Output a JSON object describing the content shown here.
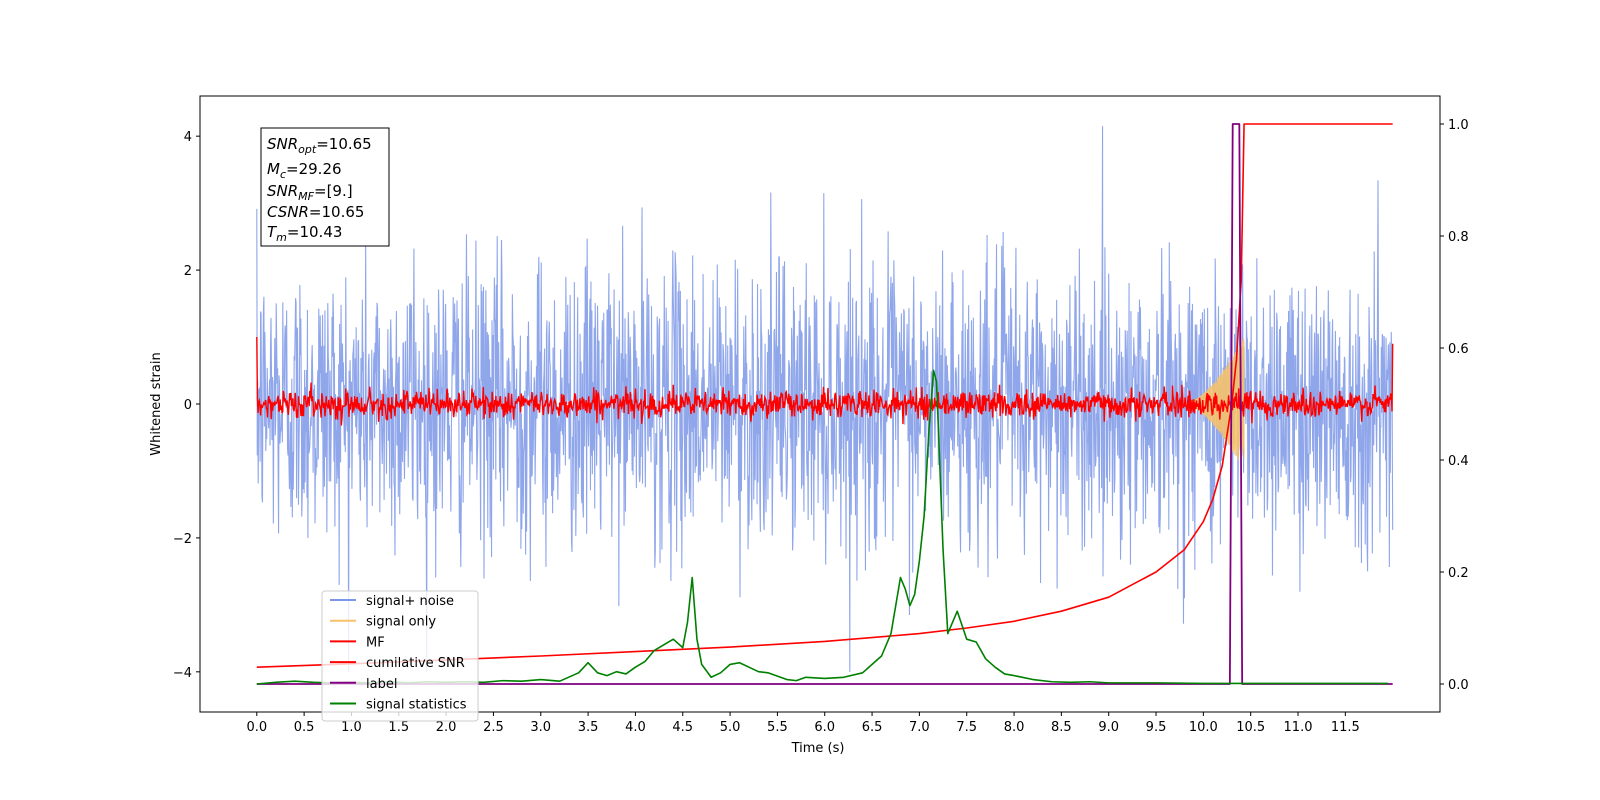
{
  "chart_data": {
    "type": "line",
    "title": "",
    "xlabel": "Time (s)",
    "ylabel": "Whitened strain",
    "xlim": [
      -0.6,
      12.5
    ],
    "ylim": [
      -4.6,
      4.6
    ],
    "ylim_right": [
      -0.05,
      1.05
    ],
    "x_ticks": [
      "0.0",
      "0.5",
      "1.0",
      "1.5",
      "2.0",
      "2.5",
      "3.0",
      "3.5",
      "4.0",
      "4.5",
      "5.0",
      "5.5",
      "6.0",
      "6.5",
      "7.0",
      "7.5",
      "8.0",
      "8.5",
      "9.0",
      "9.5",
      "10.0",
      "10.5",
      "11.0",
      "11.5"
    ],
    "y_ticks": [
      "4",
      "2",
      "0",
      "−2",
      "−4"
    ],
    "y_ticks_right": [
      "1.0",
      "0.8",
      "0.6",
      "0.4",
      "0.2",
      "0.0"
    ],
    "legend_position": "lower-left",
    "grid": false,
    "info_box": {
      "snr_opt": {
        "main": "SNR",
        "sub": "opt",
        "value": "=10.65"
      },
      "mc": {
        "main": "M",
        "sub": "c",
        "value": "=29.26"
      },
      "snr_mf": {
        "main": "SNR",
        "sub": "MF",
        "value": "=[9.]"
      },
      "csnr": {
        "main": "CSNR",
        "value": "=10.65"
      },
      "tm": {
        "main": "T",
        "sub": "m",
        "value": "=10.43"
      }
    },
    "series": [
      {
        "name": "signal+ noise",
        "color": "#7b96e8",
        "axis": "left",
        "t_start": 0.0,
        "t_end": 12.0,
        "mean": 0.0,
        "std": 1.05,
        "max": 4.15,
        "min": -4.0
      },
      {
        "name": "signal only",
        "color": "#f5c26b",
        "axis": "left",
        "t_start": 9.8,
        "t_end": 10.43,
        "peak_amplitude": 1.0
      },
      {
        "name": "MF",
        "color": "#ff0000",
        "axis": "left",
        "t_start": 0.0,
        "t_end": 12.0,
        "mean": 0.0,
        "std": 0.1,
        "start_value": 1.0,
        "end_value": 0.9
      },
      {
        "name": "cumilative SNR",
        "color": "#ff0000",
        "axis": "right",
        "x": [
          0.0,
          1.0,
          2.0,
          3.0,
          4.0,
          5.0,
          6.0,
          7.0,
          7.5,
          8.0,
          8.5,
          9.0,
          9.5,
          9.8,
          10.0,
          10.1,
          10.2,
          10.3,
          10.35,
          10.4,
          10.43,
          12.0
        ],
        "y": [
          0.03,
          0.036,
          0.043,
          0.05,
          0.058,
          0.066,
          0.076,
          0.09,
          0.1,
          0.112,
          0.13,
          0.155,
          0.2,
          0.24,
          0.29,
          0.33,
          0.39,
          0.5,
          0.58,
          0.72,
          1.0,
          1.0
        ]
      },
      {
        "name": "label",
        "color": "#800080",
        "axis": "right",
        "x": [
          0.0,
          10.28,
          10.31,
          10.38,
          10.41,
          12.0
        ],
        "y": [
          0.0,
          0.0,
          1.0,
          1.0,
          0.0,
          0.0
        ]
      },
      {
        "name": "signal statistics",
        "color": "#008000",
        "axis": "right",
        "x": [
          0.0,
          0.2,
          0.4,
          0.6,
          0.8,
          1.0,
          1.2,
          1.4,
          1.6,
          1.8,
          2.0,
          2.2,
          2.4,
          2.6,
          2.8,
          3.0,
          3.2,
          3.4,
          3.5,
          3.6,
          3.7,
          3.8,
          3.9,
          4.0,
          4.1,
          4.2,
          4.3,
          4.4,
          4.5,
          4.55,
          4.6,
          4.65,
          4.7,
          4.8,
          4.9,
          5.0,
          5.1,
          5.2,
          5.3,
          5.4,
          5.5,
          5.6,
          5.7,
          5.8,
          6.0,
          6.2,
          6.4,
          6.5,
          6.6,
          6.7,
          6.8,
          6.85,
          6.9,
          6.95,
          7.0,
          7.05,
          7.1,
          7.15,
          7.18,
          7.2,
          7.25,
          7.3,
          7.4,
          7.5,
          7.6,
          7.7,
          7.8,
          7.9,
          8.0,
          8.2,
          8.4,
          8.6,
          8.8,
          9.0,
          9.5,
          10.0,
          10.5,
          11.0,
          11.5,
          11.95
        ],
        "y": [
          0.0,
          0.003,
          0.005,
          0.003,
          0.002,
          0.003,
          0.002,
          0.004,
          0.002,
          0.004,
          0.003,
          0.004,
          0.003,
          0.006,
          0.005,
          0.008,
          0.005,
          0.02,
          0.038,
          0.02,
          0.015,
          0.022,
          0.018,
          0.03,
          0.04,
          0.06,
          0.07,
          0.08,
          0.065,
          0.11,
          0.19,
          0.08,
          0.035,
          0.012,
          0.02,
          0.035,
          0.038,
          0.03,
          0.022,
          0.02,
          0.014,
          0.008,
          0.006,
          0.012,
          0.01,
          0.012,
          0.02,
          0.035,
          0.05,
          0.09,
          0.19,
          0.17,
          0.14,
          0.16,
          0.22,
          0.3,
          0.45,
          0.56,
          0.54,
          0.46,
          0.24,
          0.09,
          0.13,
          0.08,
          0.075,
          0.045,
          0.03,
          0.018,
          0.015,
          0.008,
          0.004,
          0.003,
          0.004,
          0.002,
          0.002,
          0.001,
          0.001,
          0.001,
          0.001,
          0.001
        ]
      }
    ]
  }
}
